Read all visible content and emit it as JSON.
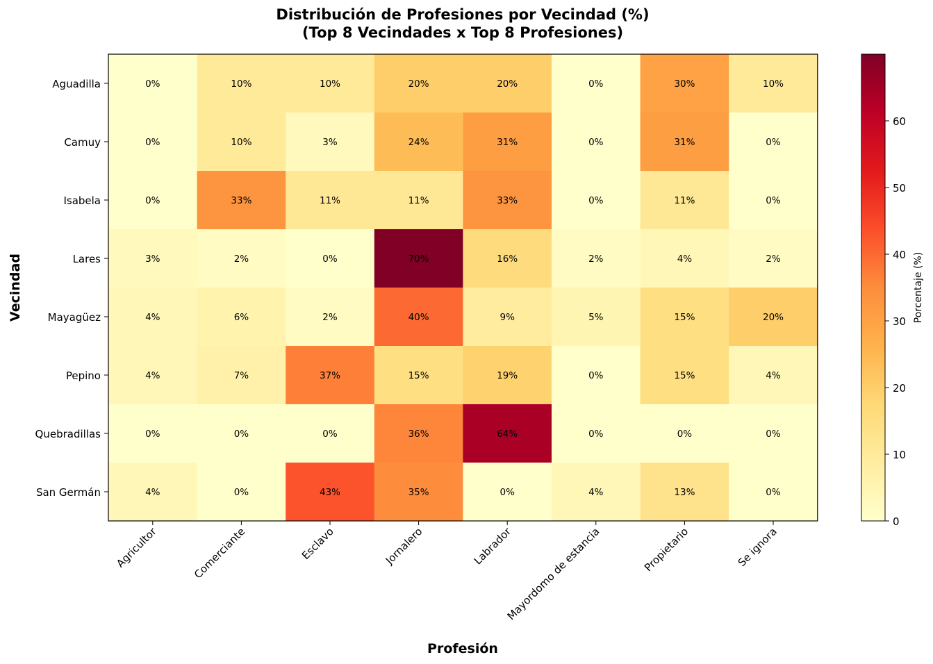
{
  "chart_data": {
    "type": "heatmap",
    "title_line1": "Distribución de Profesiones por Vecindad (%)",
    "title_line2": "(Top 8 Vecindades x Top 8 Profesiones)",
    "xlabel": "Profesión",
    "ylabel": "Vecindad",
    "columns": [
      "Agricultor",
      "Comerciante",
      "Esclavo",
      "Jornalero",
      "Labrador",
      "Mayordomo de estancia",
      "Propietario",
      "Se ignora"
    ],
    "rows": [
      "Aguadilla",
      "Camuy",
      "Isabela",
      "Lares",
      "Mayagüez",
      "Pepino",
      "Quebradillas",
      "San Germán"
    ],
    "values": [
      [
        0,
        10,
        10,
        20,
        20,
        0,
        30,
        10
      ],
      [
        0,
        10,
        3,
        24,
        31,
        0,
        31,
        0
      ],
      [
        0,
        33,
        11,
        11,
        33,
        0,
        11,
        0
      ],
      [
        3,
        2,
        0,
        70,
        16,
        2,
        4,
        2
      ],
      [
        4,
        6,
        2,
        40,
        9,
        5,
        15,
        20
      ],
      [
        4,
        7,
        37,
        15,
        19,
        0,
        15,
        4
      ],
      [
        0,
        0,
        0,
        36,
        64,
        0,
        0,
        0
      ],
      [
        4,
        0,
        43,
        35,
        0,
        4,
        13,
        0
      ]
    ],
    "value_suffix": "%",
    "colormap": "YlOrRd",
    "vmin": 0,
    "vmax": 70,
    "colorbar": {
      "label": "Porcentaje (%)",
      "ticks": [
        0,
        10,
        20,
        30,
        40,
        50,
        60
      ]
    }
  }
}
